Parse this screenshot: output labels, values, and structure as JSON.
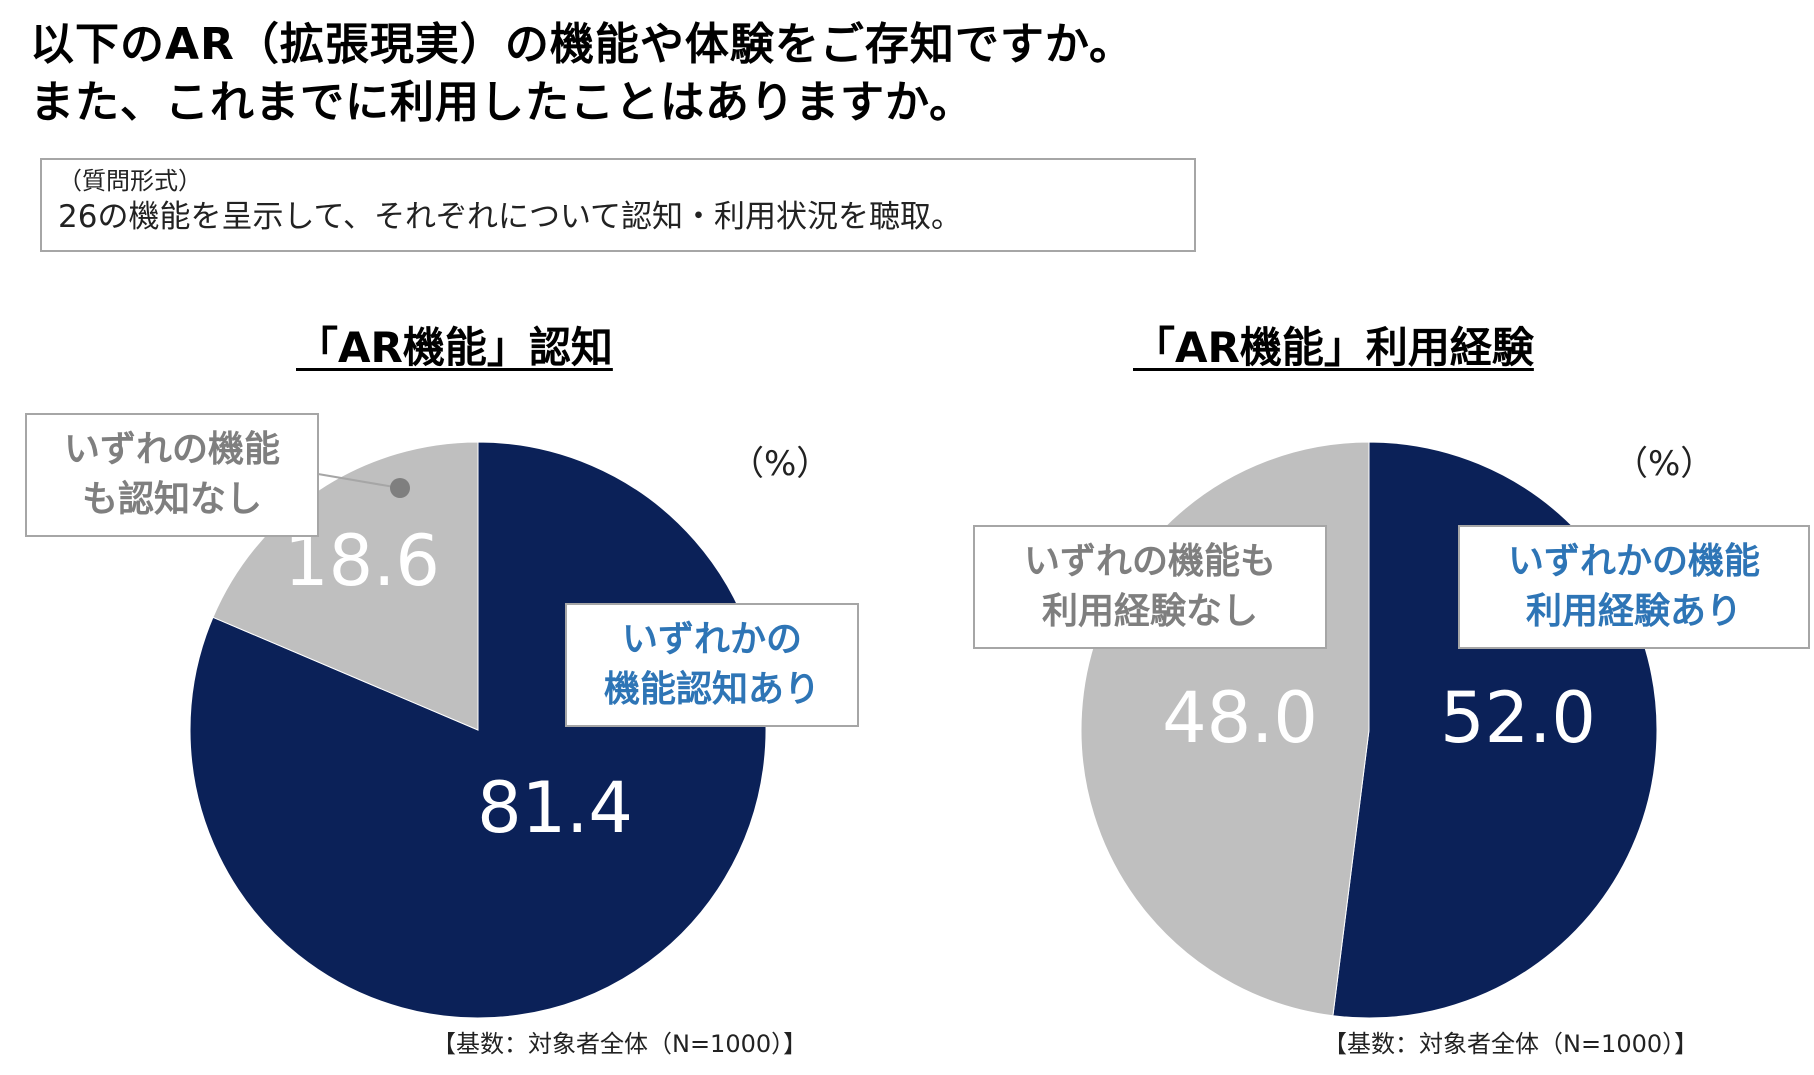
{
  "header": {
    "title_line1": "以下のAR（拡張現実）の機能や体験をご存知ですか。",
    "title_line2": "また、これまでに利用したことはありますか。"
  },
  "question": {
    "format": "（質問形式）",
    "description": "26の機能を呈示して、それぞれについて認知・利用状況を聴取。"
  },
  "colors": {
    "navy": "#0b2158",
    "gray": "#bfbfbf",
    "label_blue": "#2e75b6",
    "label_gray": "#7f7f7f"
  },
  "chart_data": [
    {
      "type": "pie",
      "title": "「AR機能」認知",
      "unit": "（%）",
      "categories": [
        "いずれかの機能認知あり",
        "いずれの機能も認知なし"
      ],
      "values": [
        81.4,
        18.6
      ],
      "value_labels": [
        "81.4",
        "18.6"
      ],
      "category_labels": [
        "いずれかの\n機能認知あり",
        "いずれの機能\nも認知なし"
      ],
      "base": "【基数：対象者全体（N=1000）】"
    },
    {
      "type": "pie",
      "title": "「AR機能」利用経験",
      "unit": "（%）",
      "categories": [
        "いずれかの機能利用経験あり",
        "いずれの機能も利用経験なし"
      ],
      "values": [
        52.0,
        48.0
      ],
      "value_labels": [
        "52.0",
        "48.0"
      ],
      "category_labels": [
        "いずれかの機能\n利用経験あり",
        "いずれの機能も\n利用経験なし"
      ],
      "base": "【基数：対象者全体（N=1000）】"
    }
  ]
}
